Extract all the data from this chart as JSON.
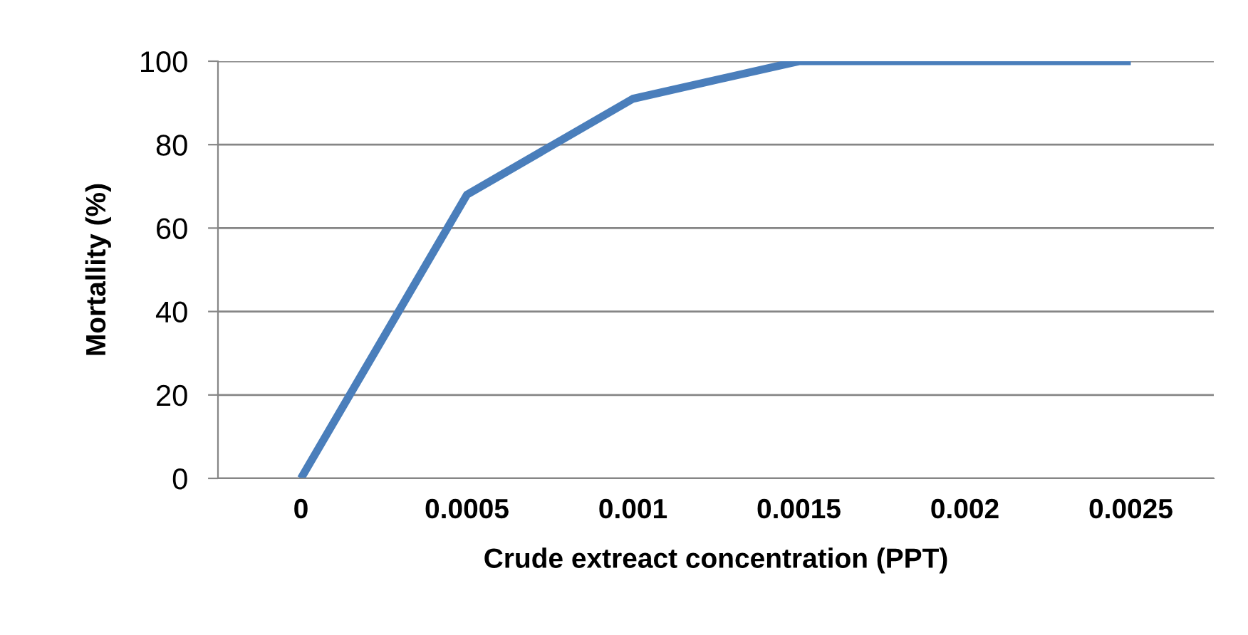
{
  "chart_data": {
    "type": "line",
    "xlabel": "Crude extreact concentration (PPT)",
    "ylabel": "Mortallity (%)",
    "categories": [
      "0",
      "0.0005",
      "0.001",
      "0.0015",
      "0.002",
      "0.0025"
    ],
    "series": [
      {
        "color": "#4a7ebb",
        "values": [
          0,
          68,
          91,
          100,
          100,
          100
        ]
      }
    ],
    "ylim": [
      0,
      100
    ],
    "yticks": [
      0,
      20,
      40,
      60,
      80,
      100
    ],
    "grid": "y",
    "marker": "none",
    "line_style": "solid"
  }
}
